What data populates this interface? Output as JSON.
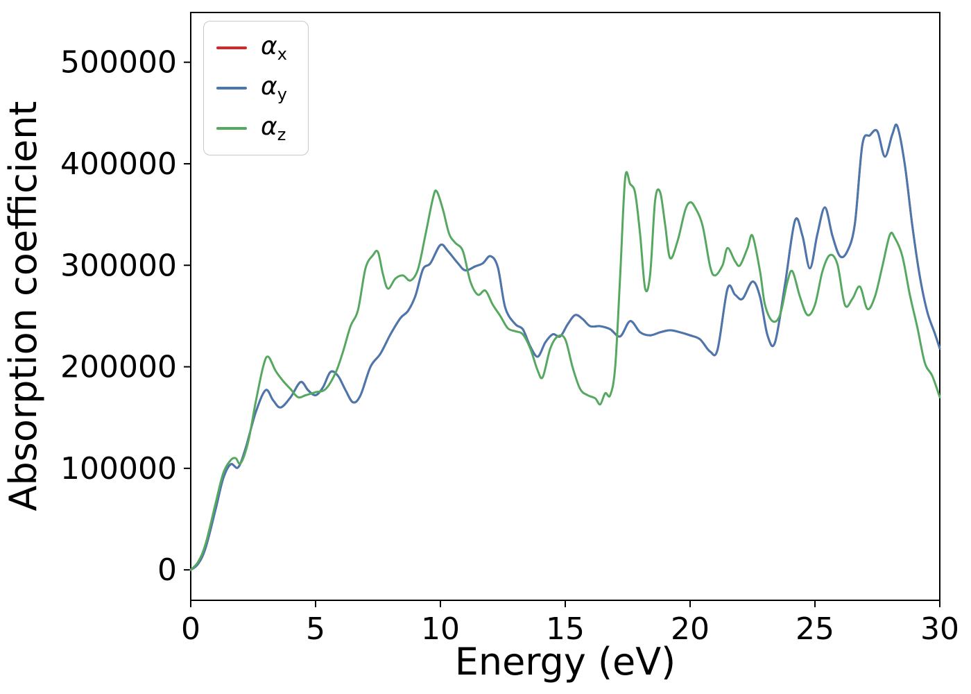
{
  "chart_data": {
    "type": "line",
    "title": "",
    "xlabel": "Energy (eV)",
    "ylabel": "Absorption coefficient",
    "xlim": [
      0,
      30
    ],
    "ylim": [
      -30000,
      549000
    ],
    "xticks": [
      0,
      5,
      10,
      15,
      20,
      25,
      30
    ],
    "yticks": [
      0,
      100000,
      200000,
      300000,
      400000,
      500000
    ],
    "grid": false,
    "legend_position": "upper-left",
    "series": [
      {
        "name": "alpha_x",
        "label": {
          "base": "α",
          "sub": "x"
        },
        "color": "#d62728",
        "same_as": "alpha_y"
      },
      {
        "name": "alpha_y",
        "label": {
          "base": "α",
          "sub": "y"
        },
        "color": "#4878af",
        "points": [
          [
            0,
            0
          ],
          [
            0.3,
            6000
          ],
          [
            0.6,
            22000
          ],
          [
            1.0,
            60000
          ],
          [
            1.3,
            90000
          ],
          [
            1.6,
            104000
          ],
          [
            1.9,
            101000
          ],
          [
            2.2,
            120000
          ],
          [
            2.6,
            155000
          ],
          [
            3.0,
            177000
          ],
          [
            3.3,
            167000
          ],
          [
            3.6,
            160000
          ],
          [
            4.0,
            170000
          ],
          [
            4.4,
            185000
          ],
          [
            4.7,
            177000
          ],
          [
            5.0,
            172000
          ],
          [
            5.3,
            180000
          ],
          [
            5.6,
            195000
          ],
          [
            5.9,
            191000
          ],
          [
            6.2,
            177000
          ],
          [
            6.5,
            165000
          ],
          [
            6.8,
            172000
          ],
          [
            7.2,
            200000
          ],
          [
            7.6,
            213000
          ],
          [
            8.0,
            232000
          ],
          [
            8.4,
            248000
          ],
          [
            8.7,
            255000
          ],
          [
            9.0,
            270000
          ],
          [
            9.3,
            296000
          ],
          [
            9.6,
            302000
          ],
          [
            10.0,
            320000
          ],
          [
            10.3,
            314000
          ],
          [
            10.7,
            302000
          ],
          [
            11.0,
            295000
          ],
          [
            11.4,
            299000
          ],
          [
            11.7,
            302000
          ],
          [
            12.0,
            309000
          ],
          [
            12.3,
            298000
          ],
          [
            12.6,
            258000
          ],
          [
            13.0,
            242000
          ],
          [
            13.3,
            237000
          ],
          [
            13.6,
            220000
          ],
          [
            13.9,
            210000
          ],
          [
            14.2,
            224000
          ],
          [
            14.5,
            232000
          ],
          [
            14.8,
            230000
          ],
          [
            15.1,
            242000
          ],
          [
            15.4,
            251000
          ],
          [
            15.7,
            247000
          ],
          [
            16.0,
            240000
          ],
          [
            16.4,
            240000
          ],
          [
            16.8,
            237000
          ],
          [
            17.2,
            230000
          ],
          [
            17.6,
            245000
          ],
          [
            18.0,
            234000
          ],
          [
            18.4,
            231000
          ],
          [
            18.8,
            234000
          ],
          [
            19.2,
            236000
          ],
          [
            19.6,
            234000
          ],
          [
            20.0,
            231000
          ],
          [
            20.4,
            227000
          ],
          [
            20.8,
            215000
          ],
          [
            21.1,
            217000
          ],
          [
            21.5,
            277000
          ],
          [
            21.8,
            271000
          ],
          [
            22.1,
            267000
          ],
          [
            22.5,
            284000
          ],
          [
            22.8,
            269000
          ],
          [
            23.1,
            231000
          ],
          [
            23.4,
            224000
          ],
          [
            23.8,
            281000
          ],
          [
            24.2,
            344000
          ],
          [
            24.5,
            329000
          ],
          [
            24.8,
            297000
          ],
          [
            25.1,
            331000
          ],
          [
            25.4,
            357000
          ],
          [
            25.7,
            329000
          ],
          [
            26.0,
            309000
          ],
          [
            26.3,
            314000
          ],
          [
            26.6,
            341000
          ],
          [
            26.9,
            419000
          ],
          [
            27.2,
            428000
          ],
          [
            27.5,
            432000
          ],
          [
            27.8,
            407000
          ],
          [
            28.1,
            429000
          ],
          [
            28.3,
            437000
          ],
          [
            28.6,
            399000
          ],
          [
            28.9,
            339000
          ],
          [
            29.2,
            289000
          ],
          [
            29.5,
            254000
          ],
          [
            29.8,
            233000
          ],
          [
            30.0,
            218000
          ]
        ]
      },
      {
        "name": "alpha_z",
        "label": {
          "base": "α",
          "sub": "z"
        },
        "color": "#56a860",
        "points": [
          [
            0,
            0
          ],
          [
            0.3,
            8000
          ],
          [
            0.6,
            26000
          ],
          [
            1.0,
            66000
          ],
          [
            1.3,
            95000
          ],
          [
            1.6,
            108000
          ],
          [
            1.8,
            110000
          ],
          [
            2.0,
            105000
          ],
          [
            2.3,
            126000
          ],
          [
            2.6,
            165000
          ],
          [
            2.9,
            200000
          ],
          [
            3.1,
            210000
          ],
          [
            3.4,
            196000
          ],
          [
            3.7,
            186000
          ],
          [
            4.0,
            178000
          ],
          [
            4.3,
            170000
          ],
          [
            4.6,
            172000
          ],
          [
            5.0,
            175000
          ],
          [
            5.4,
            178000
          ],
          [
            5.8,
            194000
          ],
          [
            6.1,
            215000
          ],
          [
            6.4,
            240000
          ],
          [
            6.7,
            256000
          ],
          [
            7.0,
            297000
          ],
          [
            7.3,
            310000
          ],
          [
            7.5,
            313000
          ],
          [
            7.7,
            291000
          ],
          [
            7.9,
            277000
          ],
          [
            8.2,
            287000
          ],
          [
            8.5,
            290000
          ],
          [
            8.8,
            285000
          ],
          [
            9.1,
            296000
          ],
          [
            9.4,
            330000
          ],
          [
            9.7,
            366000
          ],
          [
            9.85,
            373000
          ],
          [
            10.1,
            355000
          ],
          [
            10.35,
            331000
          ],
          [
            10.6,
            322000
          ],
          [
            10.9,
            314000
          ],
          [
            11.2,
            284000
          ],
          [
            11.5,
            271000
          ],
          [
            11.8,
            275000
          ],
          [
            12.1,
            261000
          ],
          [
            12.4,
            250000
          ],
          [
            12.7,
            238000
          ],
          [
            13.0,
            235000
          ],
          [
            13.3,
            232000
          ],
          [
            13.6,
            218000
          ],
          [
            13.9,
            196000
          ],
          [
            14.1,
            190000
          ],
          [
            14.4,
            218000
          ],
          [
            14.7,
            230000
          ],
          [
            15.0,
            227000
          ],
          [
            15.3,
            199000
          ],
          [
            15.6,
            178000
          ],
          [
            15.9,
            172000
          ],
          [
            16.2,
            169000
          ],
          [
            16.4,
            163000
          ],
          [
            16.6,
            174000
          ],
          [
            16.8,
            172000
          ],
          [
            17.0,
            200000
          ],
          [
            17.2,
            290000
          ],
          [
            17.4,
            386000
          ],
          [
            17.6,
            380000
          ],
          [
            17.8,
            371000
          ],
          [
            18.0,
            330000
          ],
          [
            18.2,
            277000
          ],
          [
            18.4,
            291000
          ],
          [
            18.6,
            364000
          ],
          [
            18.8,
            372000
          ],
          [
            19.0,
            340000
          ],
          [
            19.2,
            307000
          ],
          [
            19.5,
            324000
          ],
          [
            19.8,
            354000
          ],
          [
            20.0,
            362000
          ],
          [
            20.2,
            357000
          ],
          [
            20.5,
            339000
          ],
          [
            20.8,
            299000
          ],
          [
            21.0,
            290000
          ],
          [
            21.3,
            300000
          ],
          [
            21.5,
            317000
          ],
          [
            21.8,
            304000
          ],
          [
            22.0,
            300000
          ],
          [
            22.3,
            317000
          ],
          [
            22.5,
            329000
          ],
          [
            22.8,
            294000
          ],
          [
            23.0,
            261000
          ],
          [
            23.3,
            245000
          ],
          [
            23.6,
            251000
          ],
          [
            23.9,
            284000
          ],
          [
            24.1,
            294000
          ],
          [
            24.4,
            269000
          ],
          [
            24.7,
            251000
          ],
          [
            25.0,
            261000
          ],
          [
            25.3,
            294000
          ],
          [
            25.6,
            310000
          ],
          [
            25.9,
            301000
          ],
          [
            26.2,
            261000
          ],
          [
            26.5,
            267000
          ],
          [
            26.8,
            279000
          ],
          [
            27.1,
            257000
          ],
          [
            27.4,
            269000
          ],
          [
            27.7,
            299000
          ],
          [
            28.0,
            330000
          ],
          [
            28.2,
            327000
          ],
          [
            28.5,
            309000
          ],
          [
            28.8,
            271000
          ],
          [
            29.1,
            239000
          ],
          [
            29.4,
            204000
          ],
          [
            29.7,
            191000
          ],
          [
            30.0,
            170000
          ]
        ]
      }
    ]
  }
}
